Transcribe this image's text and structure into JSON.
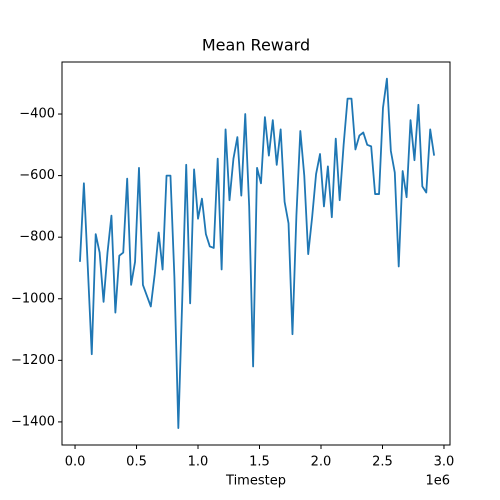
{
  "chart_data": {
    "type": "line",
    "title": "Mean Reward",
    "xlabel": "Timestep",
    "x_offset_label": "1e6",
    "x": [
      40000,
      72000,
      104000,
      136000,
      168000,
      200000,
      232000,
      264000,
      296000,
      328000,
      360000,
      392000,
      424000,
      456000,
      488000,
      520000,
      552000,
      584000,
      616000,
      648000,
      680000,
      712000,
      744000,
      776000,
      808000,
      840000,
      872000,
      904000,
      936000,
      968000,
      1000000,
      1032000,
      1064000,
      1096000,
      1128000,
      1160000,
      1192000,
      1224000,
      1256000,
      1288000,
      1320000,
      1352000,
      1384000,
      1416000,
      1448000,
      1480000,
      1512000,
      1544000,
      1576000,
      1608000,
      1640000,
      1672000,
      1704000,
      1736000,
      1768000,
      1800000,
      1832000,
      1864000,
      1896000,
      1928000,
      1960000,
      1992000,
      2024000,
      2056000,
      2088000,
      2120000,
      2152000,
      2184000,
      2216000,
      2248000,
      2280000,
      2312000,
      2344000,
      2376000,
      2408000,
      2440000,
      2472000,
      2504000,
      2536000,
      2568000,
      2600000,
      2632000,
      2664000,
      2696000,
      2728000,
      2760000,
      2792000,
      2824000,
      2856000,
      2888000,
      2920000
    ],
    "series": [
      {
        "name": "Mean Reward",
        "color": "#1f77b4",
        "values": [
          -880,
          -625,
          -900,
          -1180,
          -790,
          -850,
          -1010,
          -850,
          -730,
          -1045,
          -860,
          -850,
          -610,
          -955,
          -880,
          -575,
          -955,
          -990,
          -1025,
          -920,
          -785,
          -905,
          -600,
          -600,
          -930,
          -1420,
          -1000,
          -565,
          -1015,
          -580,
          -740,
          -675,
          -790,
          -830,
          -835,
          -545,
          -905,
          -450,
          -680,
          -545,
          -475,
          -665,
          -400,
          -700,
          -1220,
          -575,
          -625,
          -410,
          -535,
          -420,
          -565,
          -450,
          -685,
          -755,
          -1115,
          -730,
          -455,
          -600,
          -855,
          -735,
          -595,
          -530,
          -700,
          -570,
          -735,
          -480,
          -680,
          -500,
          -350,
          -350,
          -515,
          -470,
          -460,
          -500,
          -505,
          -660,
          -660,
          -380,
          -285,
          -520,
          -590,
          -895,
          -585,
          -670,
          -420,
          -550,
          -370,
          -635,
          -655,
          -450,
          -535
        ]
      }
    ],
    "xlim": [
      -106000,
      3049000
    ],
    "ylim": [
      -1475,
      -231
    ],
    "xticks": [
      {
        "value": 0,
        "label": "0.0"
      },
      {
        "value": 500000,
        "label": "0.5"
      },
      {
        "value": 1000000,
        "label": "1.0"
      },
      {
        "value": 1500000,
        "label": "1.5"
      },
      {
        "value": 2000000,
        "label": "2.0"
      },
      {
        "value": 2500000,
        "label": "2.5"
      },
      {
        "value": 3000000,
        "label": "3.0"
      }
    ],
    "yticks": [
      {
        "value": -1400,
        "label": "−1400"
      },
      {
        "value": -1200,
        "label": "−1200"
      },
      {
        "value": -1000,
        "label": "−1000"
      },
      {
        "value": -800,
        "label": "−800"
      },
      {
        "value": -600,
        "label": "−600"
      },
      {
        "value": -400,
        "label": "−400"
      }
    ],
    "grid": false
  }
}
